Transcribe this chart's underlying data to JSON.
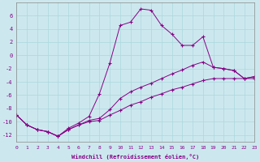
{
  "xlabel": "Windchill (Refroidissement éolien,°C)",
  "xlim": [
    0,
    23
  ],
  "ylim": [
    -13,
    8
  ],
  "yticks": [
    -12,
    -10,
    -8,
    -6,
    -4,
    -2,
    0,
    2,
    4,
    6
  ],
  "xticks": [
    0,
    1,
    2,
    3,
    4,
    5,
    6,
    7,
    8,
    9,
    10,
    11,
    12,
    13,
    14,
    15,
    16,
    17,
    18,
    19,
    20,
    21,
    22,
    23
  ],
  "bg_color": "#cce8ee",
  "line_color": "#880088",
  "grid_color": "#aad8dd",
  "line1_x": [
    0,
    1,
    2,
    3,
    4,
    5,
    6,
    7,
    8,
    9,
    10,
    11,
    12,
    13,
    14,
    15,
    16,
    17,
    18,
    19,
    20,
    21,
    22,
    23
  ],
  "line1_y": [
    -9.0,
    -10.5,
    -11.2,
    -11.5,
    -12.2,
    -11.0,
    -10.2,
    -9.2,
    -5.8,
    -1.2,
    4.5,
    5.0,
    7.0,
    6.8,
    4.5,
    3.2,
    1.5,
    1.5,
    2.8,
    -1.8,
    -2.0,
    -2.3,
    -3.5,
    -3.5
  ],
  "line2_x": [
    0,
    1,
    2,
    3,
    4,
    5,
    6,
    7,
    8,
    9,
    10,
    11,
    12,
    13,
    14,
    15,
    16,
    17,
    18,
    19,
    20,
    21,
    22,
    23
  ],
  "line2_y": [
    -9.0,
    -10.5,
    -11.2,
    -11.5,
    -12.2,
    -11.2,
    -10.5,
    -9.8,
    -9.5,
    -8.2,
    -6.5,
    -5.5,
    -4.8,
    -4.2,
    -3.5,
    -2.8,
    -2.2,
    -1.5,
    -1.0,
    -1.8,
    -2.0,
    -2.3,
    -3.5,
    -3.2
  ],
  "line3_x": [
    0,
    1,
    2,
    3,
    4,
    5,
    6,
    7,
    8,
    9,
    10,
    11,
    12,
    13,
    14,
    15,
    16,
    17,
    18,
    19,
    20,
    21,
    22,
    23
  ],
  "line3_y": [
    -9.0,
    -10.5,
    -11.2,
    -11.5,
    -12.2,
    -11.2,
    -10.5,
    -10.0,
    -9.8,
    -9.0,
    -8.3,
    -7.5,
    -7.0,
    -6.3,
    -5.8,
    -5.2,
    -4.8,
    -4.3,
    -3.8,
    -3.5,
    -3.5,
    -3.5,
    -3.5,
    -3.2
  ]
}
